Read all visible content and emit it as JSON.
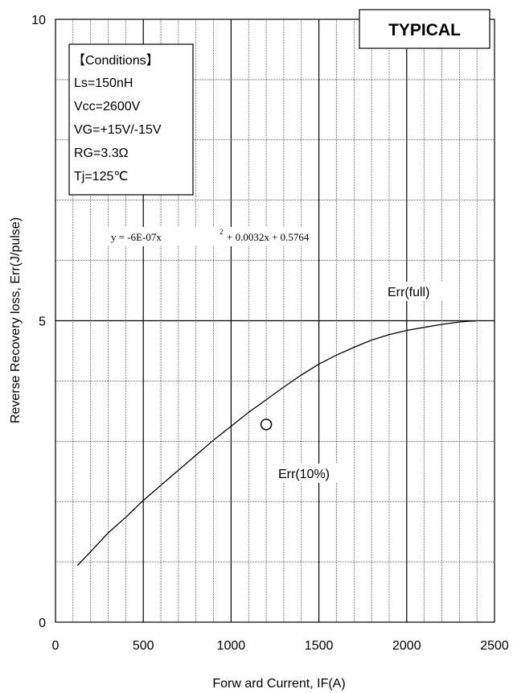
{
  "chart_data": {
    "type": "line",
    "xlabel": "Forw ard Current, IF(A)",
    "ylabel": "Reverse Recovery loss, Err(J/pulse)",
    "xlim": [
      0,
      2500
    ],
    "ylim": [
      0,
      10
    ],
    "x_ticks": [
      "0",
      "500",
      "1000",
      "1500",
      "2000",
      "2500"
    ],
    "y_ticks": [
      "0",
      "5",
      "10"
    ],
    "x_minor_step": 100,
    "y_minor_step": 1,
    "grid": true,
    "badge": "TYPICAL",
    "conditions": [
      "【Conditions】",
      "Ls=150nH",
      "Vcc=2600V",
      "VG=+15V/-15V",
      "RG=3.3Ω",
      "Tj=125℃"
    ],
    "equation": {
      "lhs": "y = -6E-07x",
      "exp": "2",
      "rhs": "+ 0.0032x + 0.5764"
    },
    "series": [
      {
        "name": "Err(full)",
        "x": [
          125,
          200,
          300,
          400,
          500,
          600,
          700,
          800,
          900,
          1000,
          1100,
          1200,
          1300,
          1400,
          1500,
          1600,
          1700,
          1800,
          1900,
          2000,
          2100,
          2200,
          2300,
          2400
        ],
        "y": [
          0.94,
          1.17,
          1.48,
          1.74,
          2.02,
          2.27,
          2.52,
          2.77,
          3.02,
          3.25,
          3.48,
          3.69,
          3.9,
          4.1,
          4.28,
          4.43,
          4.56,
          4.68,
          4.77,
          4.84,
          4.89,
          4.94,
          4.98,
          5.0
        ]
      },
      {
        "name": "Err(10%)",
        "x": [
          1200
        ],
        "y": [
          3.28
        ]
      }
    ]
  }
}
